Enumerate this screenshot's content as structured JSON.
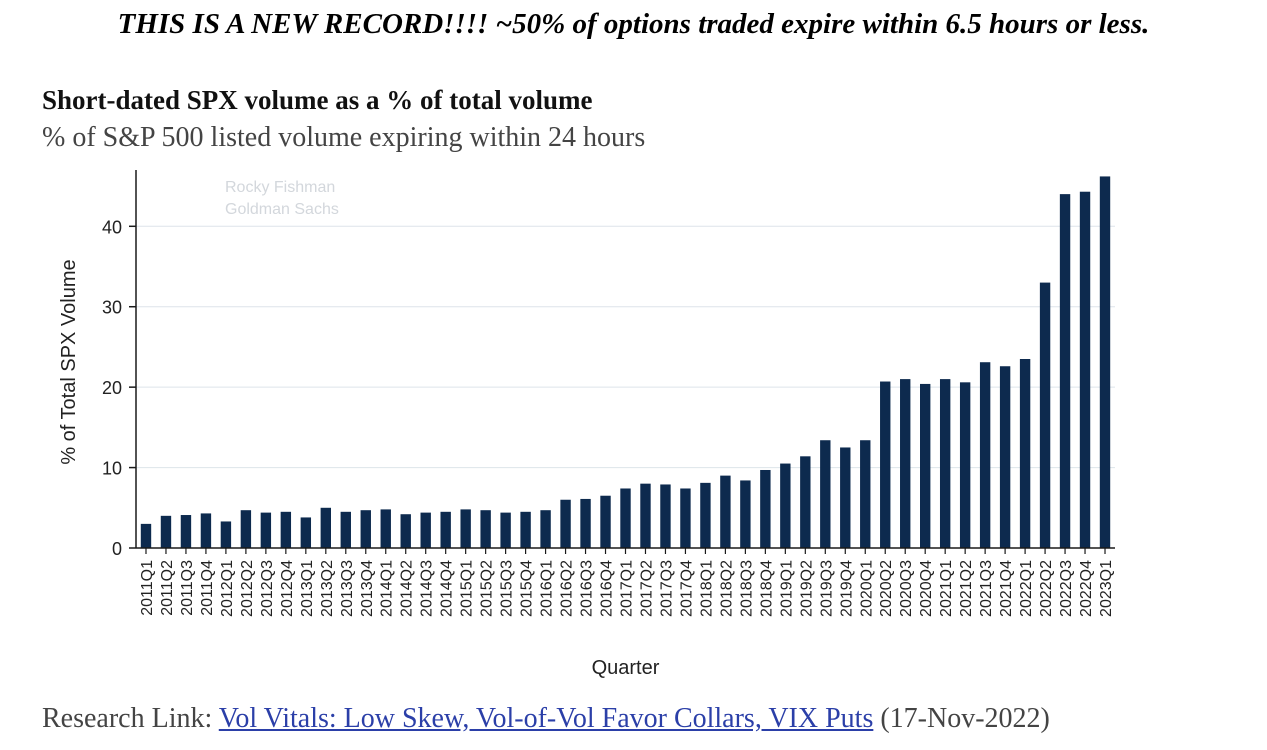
{
  "headline": "THIS IS A NEW RECORD!!!! ~50% of options traded expire within 6.5 hours or less.",
  "footer": {
    "prefix": "Research Link:",
    "link_text": "Vol Vitals: Low Skew, Vol-of-Vol Favor Collars, VIX Puts",
    "date": "(17-Nov-2022)"
  },
  "colors": {
    "bar": "#0d2a4e",
    "grid": "#dde4ea",
    "axis": "#1a1a1a",
    "link": "#2b3fa8"
  },
  "chart_data": {
    "type": "bar",
    "title": "Short-dated SPX volume as a % of total volume",
    "subtitle": "% of S&P 500 listed volume expiring within 24 hours",
    "xlabel": "Quarter",
    "ylabel": "% of Total SPX Volume",
    "ylim": [
      0,
      47
    ],
    "yticks": [
      0,
      10,
      20,
      30,
      40
    ],
    "grid": true,
    "watermark": [
      "Rocky Fishman",
      "Goldman Sachs"
    ],
    "categories": [
      "2011Q1",
      "2011Q2",
      "2011Q3",
      "2011Q4",
      "2012Q1",
      "2012Q2",
      "2012Q3",
      "2012Q4",
      "2013Q1",
      "2013Q2",
      "2013Q3",
      "2013Q4",
      "2014Q1",
      "2014Q2",
      "2014Q3",
      "2014Q4",
      "2015Q1",
      "2015Q2",
      "2015Q3",
      "2015Q4",
      "2016Q1",
      "2016Q2",
      "2016Q3",
      "2016Q4",
      "2017Q1",
      "2017Q2",
      "2017Q3",
      "2017Q4",
      "2018Q1",
      "2018Q2",
      "2018Q3",
      "2018Q4",
      "2019Q1",
      "2019Q2",
      "2019Q3",
      "2019Q4",
      "2020Q1",
      "2020Q2",
      "2020Q3",
      "2020Q4",
      "2021Q1",
      "2021Q2",
      "2021Q3",
      "2021Q4",
      "2022Q1",
      "2022Q2",
      "2022Q3",
      "2022Q4",
      "2023Q1"
    ],
    "values": [
      3.0,
      4.0,
      4.1,
      4.3,
      3.3,
      4.7,
      4.4,
      4.5,
      3.8,
      5.0,
      4.5,
      4.7,
      4.8,
      4.2,
      4.4,
      4.5,
      4.8,
      4.7,
      4.4,
      4.5,
      4.7,
      6.0,
      6.1,
      6.5,
      7.4,
      8.0,
      7.9,
      7.4,
      8.1,
      9.0,
      8.4,
      9.7,
      10.5,
      11.4,
      13.4,
      12.5,
      13.4,
      20.7,
      21.0,
      20.4,
      21.0,
      20.6,
      23.1,
      22.6,
      23.5,
      33.0,
      44.0,
      44.3,
      46.2
    ]
  }
}
